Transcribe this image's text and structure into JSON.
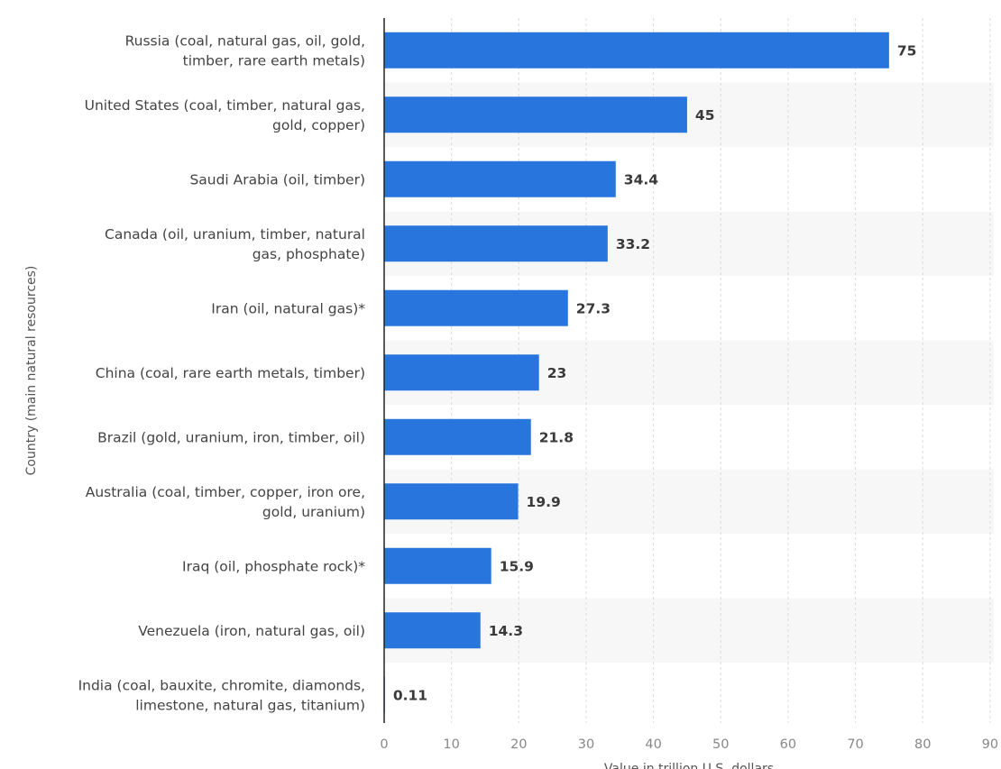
{
  "chart_data": {
    "type": "bar",
    "orientation": "horizontal",
    "categories": [
      [
        "Russia (coal, natural gas, oil, gold,",
        "timber, rare earth metals)"
      ],
      [
        "United States (coal, timber, natural gas,",
        "gold, copper)"
      ],
      [
        "Saudi Arabia (oil, timber)"
      ],
      [
        "Canada (oil, uranium, timber, natural",
        "gas, phosphate)"
      ],
      [
        "Iran (oil, natural gas)*"
      ],
      [
        "China (coal, rare earth metals, timber)"
      ],
      [
        "Brazil (gold, uranium, iron, timber, oil)"
      ],
      [
        "Australia (coal, timber, copper, iron ore,",
        "gold, uranium)"
      ],
      [
        "Iraq (oil, phosphate rock)*"
      ],
      [
        "Venezuela (iron, natural gas, oil)"
      ],
      [
        "India (coal, bauxite, chromite, diamonds,",
        "limestone, natural gas, titanium)"
      ]
    ],
    "values": [
      75,
      45,
      34.4,
      33.2,
      27.3,
      23,
      21.8,
      19.9,
      15.9,
      14.3,
      0.11
    ],
    "value_labels": [
      "75",
      "45",
      "34.4",
      "33.2",
      "27.3",
      "23",
      "21.8",
      "19.9",
      "15.9",
      "14.3",
      "0.11"
    ],
    "xlabel": "Value in trillion U.S. dollars",
    "ylabel": "Country (main natural resources)",
    "xlim": [
      0,
      90
    ],
    "xticks": [
      0,
      10,
      20,
      30,
      40,
      50,
      60,
      70,
      80,
      90
    ],
    "grid": "vertical-dashed",
    "bar_color": "#2876dd"
  }
}
